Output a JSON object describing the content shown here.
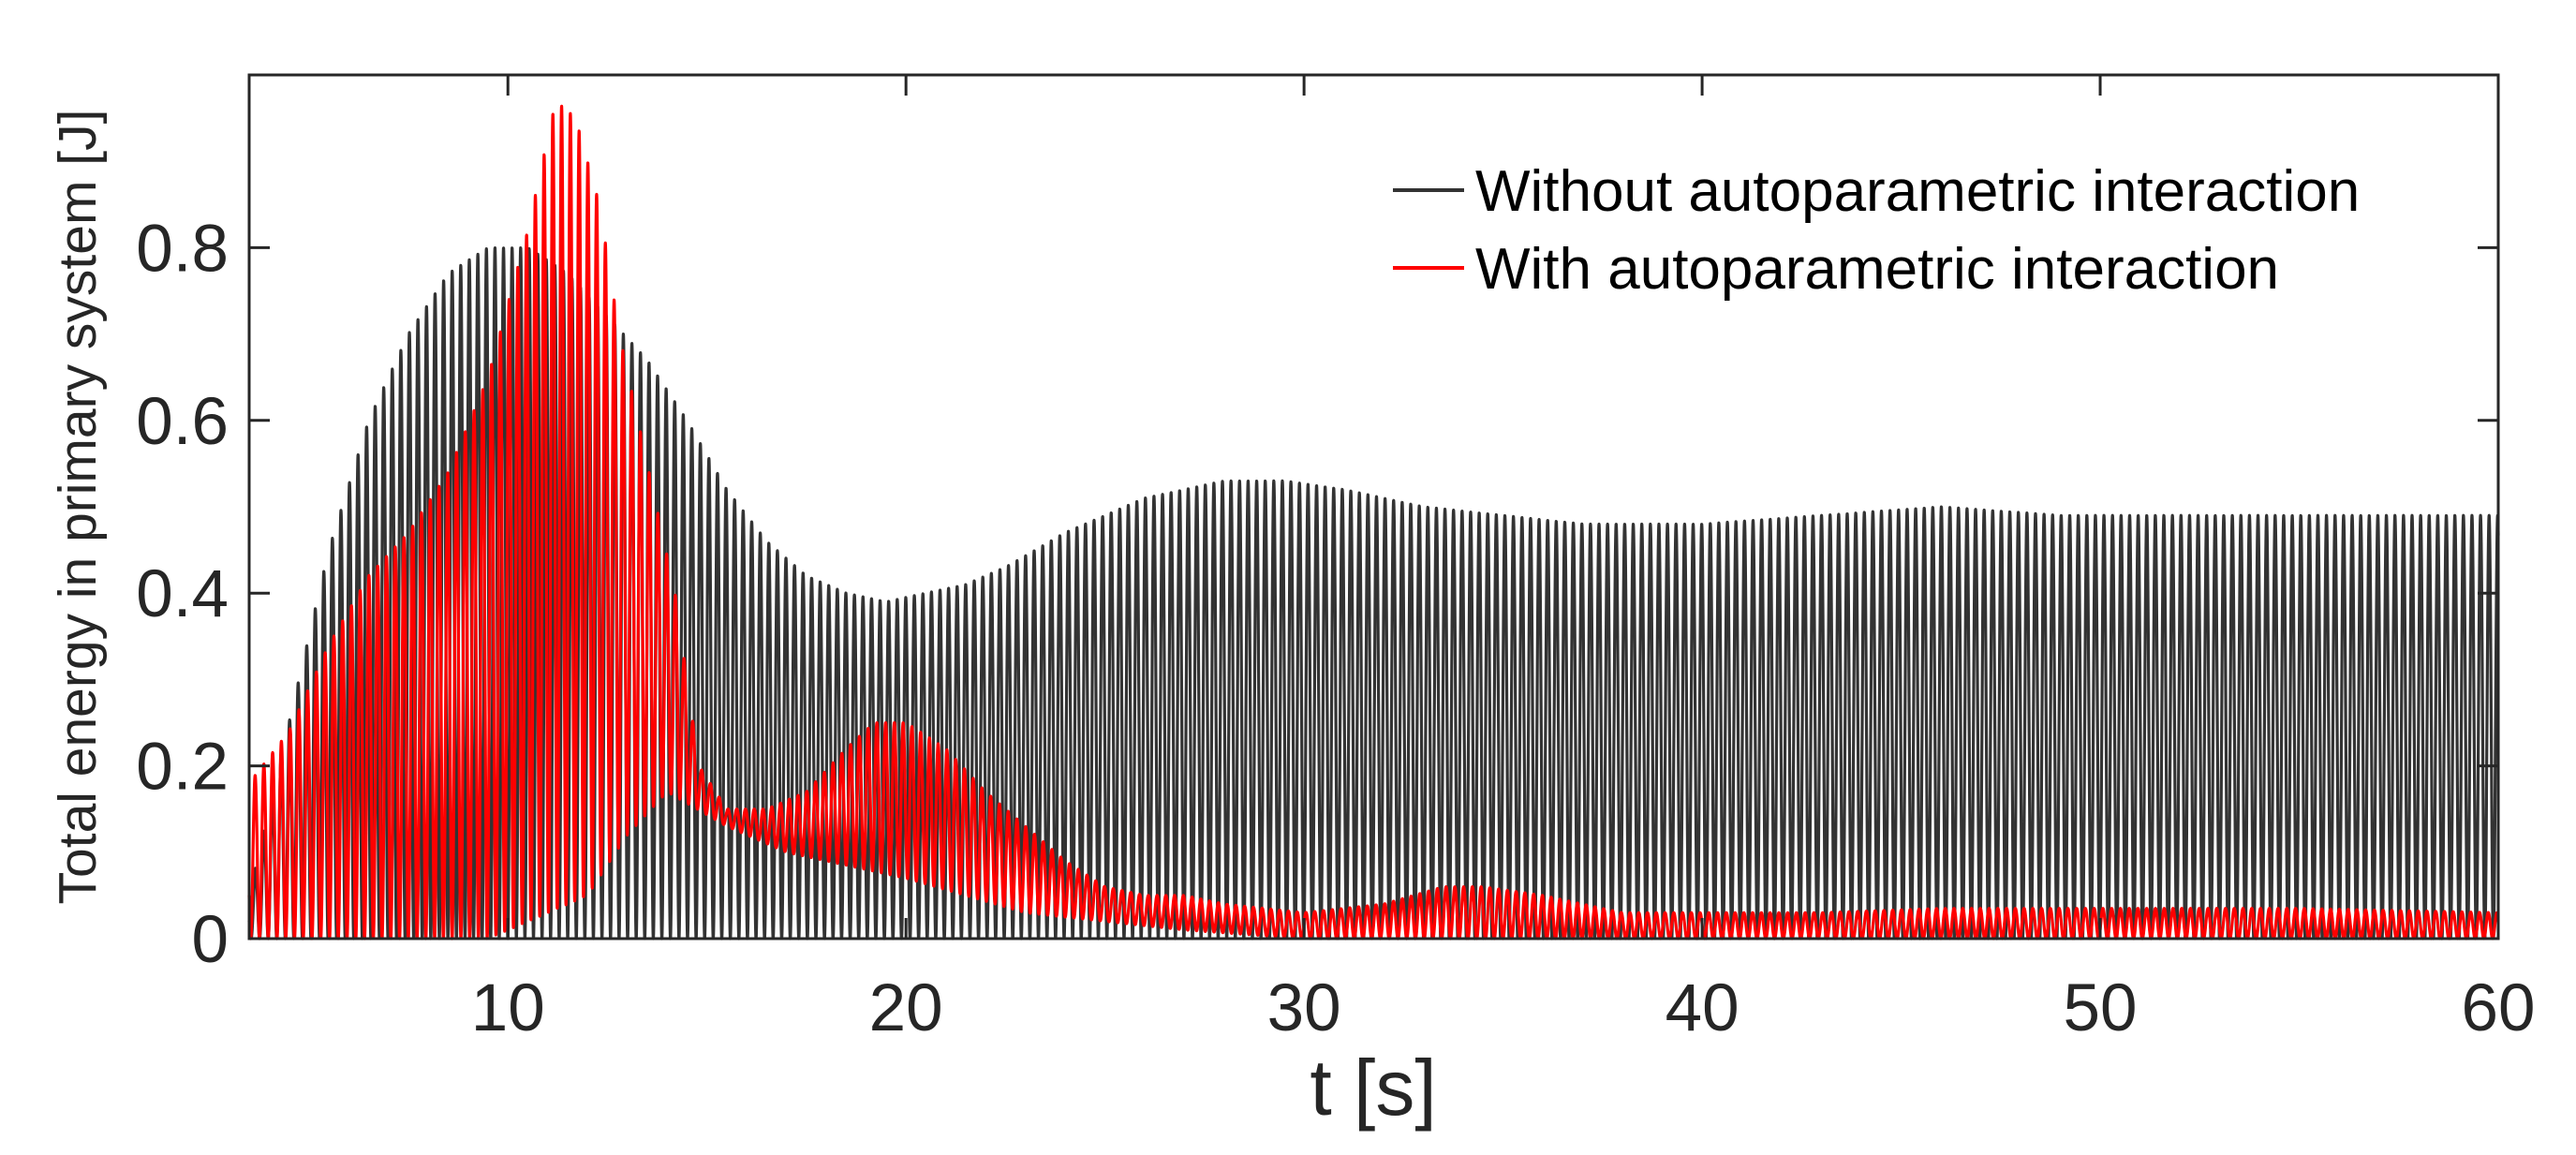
{
  "chart_data": {
    "type": "line",
    "xlabel": "t [s]",
    "ylabel": "Total energy in primary system [J]",
    "xlim": [
      3.5,
      60
    ],
    "ylim": [
      0,
      1.0
    ],
    "xticks": [
      10,
      20,
      30,
      40,
      50,
      60
    ],
    "yticks": [
      0,
      0.2,
      0.4,
      0.6,
      0.8
    ],
    "ytick_labels": [
      "0",
      "0.2",
      "0.4",
      "0.6",
      "0.8"
    ],
    "grid": false,
    "legend_position": "top-right",
    "series": [
      {
        "name": "Without autoparametric interaction",
        "color": "#333333",
        "oscillation_period": 0.43,
        "envelope_min": 0,
        "envelope_max": {
          "t": [
            3.5,
            4.5,
            5.5,
            6.5,
            7.5,
            8.5,
            9.5,
            10.5,
            11.5,
            12.5,
            13.5,
            14.5,
            15.5,
            16.5,
            17.5,
            18.5,
            19.5,
            20.5,
            21.5,
            22.5,
            24,
            26,
            28,
            29.5,
            31,
            33,
            35,
            37,
            40,
            43,
            46,
            49,
            52,
            55,
            58,
            60
          ],
          "value": [
            0.05,
            0.25,
            0.45,
            0.6,
            0.7,
            0.77,
            0.8,
            0.8,
            0.77,
            0.72,
            0.67,
            0.6,
            0.52,
            0.46,
            0.42,
            0.4,
            0.39,
            0.4,
            0.41,
            0.43,
            0.47,
            0.51,
            0.53,
            0.53,
            0.52,
            0.5,
            0.49,
            0.48,
            0.48,
            0.49,
            0.5,
            0.49,
            0.49,
            0.49,
            0.49,
            0.49
          ]
        }
      },
      {
        "name": "With autoparametric interaction",
        "color": "#ff0000",
        "oscillation_period": 0.44,
        "envelope_min": {
          "t": [
            3.5,
            9.5,
            12,
            13,
            14,
            15.5,
            17,
            20,
            23,
            27,
            30,
            34,
            37,
            40,
            45,
            50,
            55,
            60
          ],
          "value": [
            0.0,
            0.0,
            0.05,
            0.12,
            0.17,
            0.13,
            0.1,
            0.07,
            0.03,
            0.01,
            0.0,
            0.0,
            0.0,
            0.0,
            0.0,
            0.0,
            0.0,
            0.0
          ]
        },
        "envelope_max": {
          "t": [
            3.5,
            4.5,
            5.5,
            6.5,
            7.5,
            8.5,
            9.5,
            10.5,
            11.2,
            11.7,
            12.3,
            12.8,
            13.5,
            14.2,
            14.8,
            15.5,
            16.5,
            17.5,
            18.5,
            19.2,
            20,
            21,
            22,
            23,
            24,
            25,
            26,
            27,
            28,
            30,
            32,
            33.5,
            34.5,
            36,
            37,
            38,
            40,
            43,
            46,
            50,
            55,
            60
          ],
          "value": [
            0.18,
            0.24,
            0.34,
            0.42,
            0.47,
            0.54,
            0.65,
            0.82,
            0.97,
            0.95,
            0.85,
            0.7,
            0.55,
            0.4,
            0.2,
            0.15,
            0.15,
            0.17,
            0.22,
            0.25,
            0.25,
            0.22,
            0.17,
            0.13,
            0.09,
            0.06,
            0.05,
            0.05,
            0.04,
            0.03,
            0.04,
            0.06,
            0.06,
            0.05,
            0.04,
            0.03,
            0.03,
            0.03,
            0.035,
            0.035,
            0.035,
            0.03
          ]
        }
      }
    ]
  }
}
